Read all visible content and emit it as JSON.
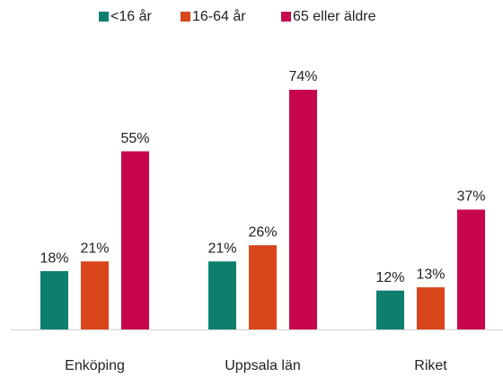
{
  "chart_data": {
    "type": "bar",
    "categories": [
      "Enköping",
      "Uppsala län",
      "Riket"
    ],
    "series": [
      {
        "name": "<16 år",
        "color": "#0e7f6e",
        "values": [
          18,
          21,
          12
        ],
        "value_labels": [
          "18%",
          "21%",
          "12%"
        ]
      },
      {
        "name": "16-64 år",
        "color": "#d9461b",
        "values": [
          21,
          26,
          13
        ],
        "value_labels": [
          "21%",
          "26%",
          "13%"
        ]
      },
      {
        "name": "65 eller äldre",
        "color": "#c8064e",
        "values": [
          55,
          74,
          37
        ],
        "value_labels": [
          "55%",
          "74%",
          "37%"
        ]
      }
    ],
    "legend": "top"
  }
}
